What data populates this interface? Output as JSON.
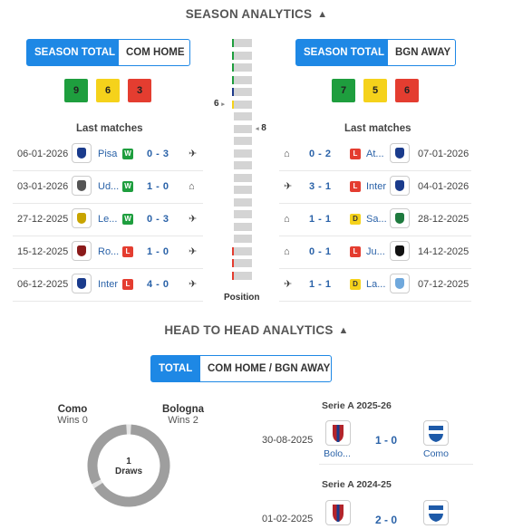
{
  "season": {
    "title": "SEASON ANALYTICS",
    "left_tabs": [
      "SEASON TOTAL",
      "COM HOME"
    ],
    "right_tabs": [
      "SEASON TOTAL",
      "BGN AWAY"
    ],
    "left_counts": {
      "wins": "9",
      "draws": "6",
      "losses": "3"
    },
    "right_counts": {
      "wins": "7",
      "draws": "5",
      "losses": "6"
    },
    "last_matches_label": "Last matches",
    "left_matches": [
      {
        "date": "06-01-2026",
        "team": "Pisa",
        "result": "W",
        "score": "0 - 3",
        "venue_icon": "plane-icon",
        "crest_color": "#1a3b8c"
      },
      {
        "date": "03-01-2026",
        "team": "Ud...",
        "result": "W",
        "score": "1 - 0",
        "venue_icon": "home-icon",
        "crest_color": "#555555"
      },
      {
        "date": "27-12-2025",
        "team": "Le...",
        "result": "W",
        "score": "0 - 3",
        "venue_icon": "plane-icon",
        "crest_color": "#c8a400"
      },
      {
        "date": "15-12-2025",
        "team": "Ro...",
        "result": "L",
        "score": "1 - 0",
        "venue_icon": "plane-icon",
        "crest_color": "#8b1a1a"
      },
      {
        "date": "06-12-2025",
        "team": "Inter",
        "result": "L",
        "score": "4 - 0",
        "venue_icon": "plane-icon",
        "crest_color": "#1a3b8c"
      }
    ],
    "right_matches": [
      {
        "venue_icon": "home-icon",
        "score": "0 - 2",
        "result": "L",
        "team": "At...",
        "date": "07-01-2026",
        "crest_color": "#1a3b8c"
      },
      {
        "venue_icon": "plane-icon",
        "score": "3 - 1",
        "result": "L",
        "team": "Inter",
        "date": "04-01-2026",
        "crest_color": "#1a3b8c"
      },
      {
        "venue_icon": "home-icon",
        "score": "1 - 1",
        "result": "D",
        "team": "Sa...",
        "date": "28-12-2025",
        "crest_color": "#1e7a3e"
      },
      {
        "venue_icon": "home-icon",
        "score": "0 - 1",
        "result": "L",
        "team": "Ju...",
        "date": "14-12-2025",
        "crest_color": "#111111"
      },
      {
        "venue_icon": "plane-icon",
        "score": "1 - 1",
        "result": "D",
        "team": "La...",
        "date": "07-12-2025",
        "crest_color": "#6fa8dc"
      }
    ],
    "position": {
      "label": "Position",
      "left_value": "6",
      "right_value": "8"
    }
  },
  "h2h": {
    "title": "HEAD TO HEAD ANALYTICS",
    "tabs": [
      "TOTAL",
      "COM HOME / BGN AWAY"
    ],
    "home_team": "Como",
    "home_wins": "Wins 0",
    "away_team": "Bologna",
    "away_wins": "Wins 2",
    "draws_value": "1",
    "draws_label": "Draws",
    "ring": {
      "home_wins": 0,
      "draws": 1,
      "away_wins": 2
    },
    "matches": [
      {
        "competition": "Serie A 2025-26",
        "date": "30-08-2025",
        "home": "Bolo...",
        "score": "1 - 0",
        "away": "Como"
      },
      {
        "competition": "Serie A 2024-25",
        "date": "01-02-2025",
        "home": "",
        "score": "2 - 0",
        "away": ""
      }
    ]
  },
  "icons": {
    "home": "⌂",
    "plane": "✈",
    "chevron_up": "⌃"
  },
  "colors": {
    "accent": "#1e88e5",
    "win": "#1e9e3e",
    "draw": "#f5d21b",
    "loss": "#e43d30",
    "link": "#2a62a8"
  }
}
